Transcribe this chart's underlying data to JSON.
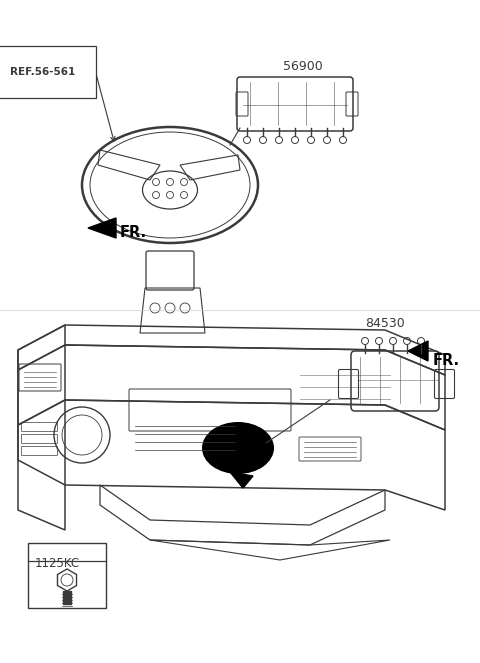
{
  "bg_color": "#ffffff",
  "line_color": "#3a3a3a",
  "text_color": "#3a3a3a",
  "label_56900": "56900",
  "ref_label": "REF.56-561",
  "label_84530": "84530",
  "bolt_label": "1125KC",
  "fr_label": "FR.",
  "figsize": [
    4.8,
    6.63
  ],
  "dpi": 100
}
